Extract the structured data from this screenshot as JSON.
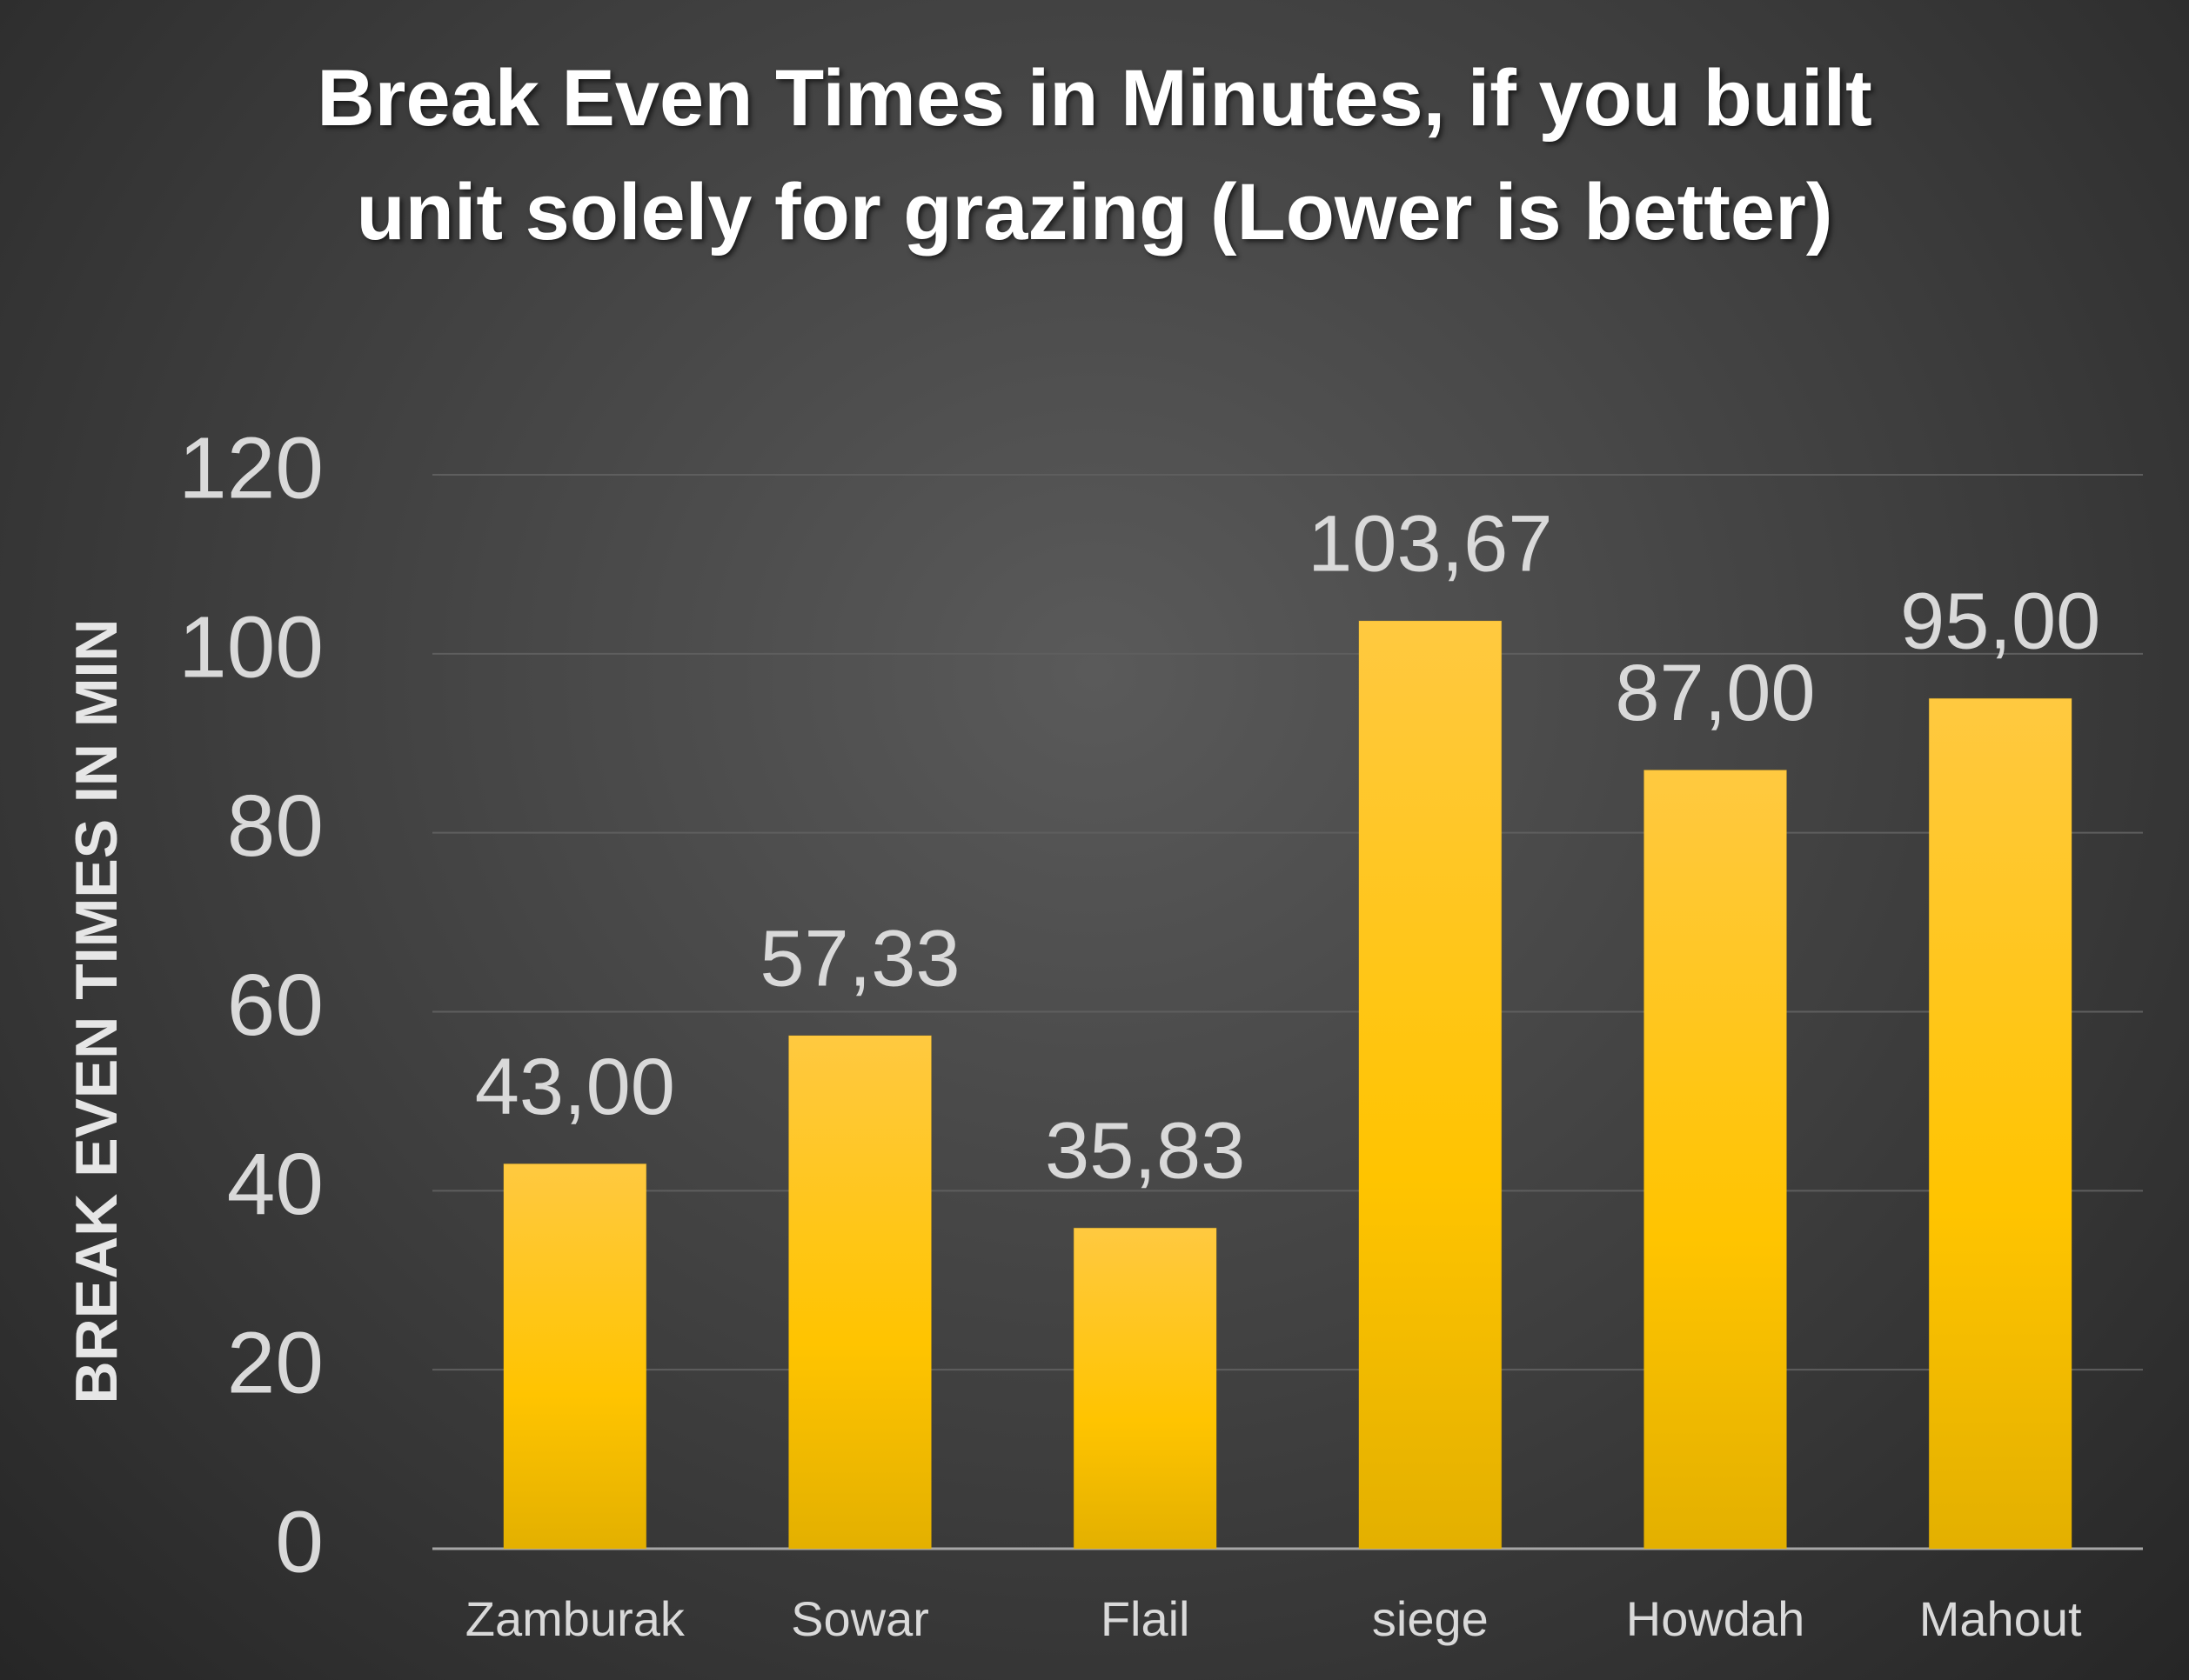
{
  "chart_data": {
    "type": "bar",
    "title": "Break Even Times in Minutes, if you built unit solely for grazing (Lower is better)",
    "y_label": "BREAK EVEN TIMES IN MIN",
    "categories": [
      "Zamburak",
      "Sowar",
      "Flail",
      "siege",
      "Howdah",
      "Mahout"
    ],
    "values": [
      43.0,
      57.33,
      35.83,
      103.67,
      87.0,
      95.0
    ],
    "value_labels": [
      "43,00",
      "57,33",
      "35,83",
      "103,67",
      "87,00",
      "95,00"
    ],
    "color": "#ffc000",
    "ylim": [
      0,
      120
    ],
    "yticks": [
      0,
      20,
      40,
      60,
      80,
      100,
      120
    ],
    "grid": true
  }
}
